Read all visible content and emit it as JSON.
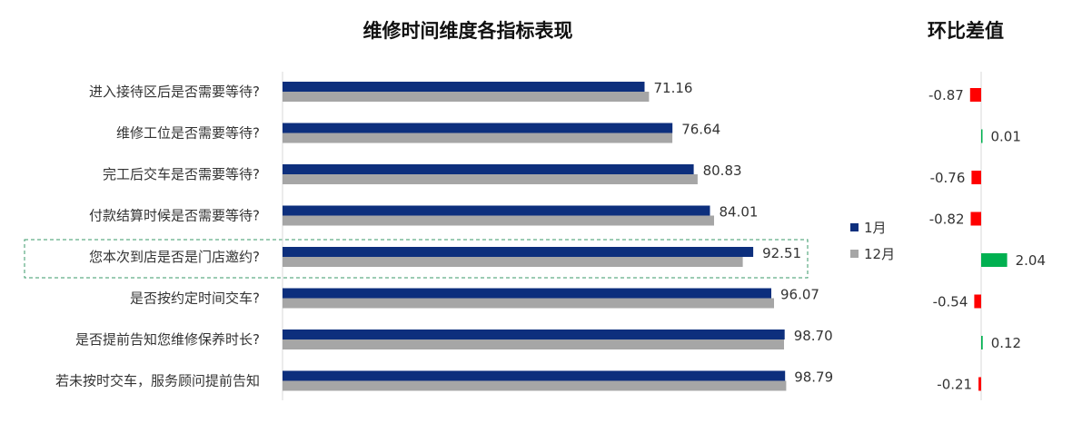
{
  "chart_data": [
    {
      "type": "bar",
      "orientation": "horizontal",
      "title": "维修时间维度各指标表现",
      "categories": [
        "进入接待区后是否需要等待?",
        "维修工位是否需要等待?",
        "完工后交车是否需要等待?",
        "付款结算时候是否需要等待?",
        "您本次到店是否是门店邀约?",
        "是否按约定时间交车?",
        "是否提前告知您维修保养时长?",
        "若未按时交车，服务顾问提前告知"
      ],
      "series": [
        {
          "name": "1月",
          "color": "#0d2f7d",
          "values": [
            71.16,
            76.64,
            80.83,
            84.01,
            92.51,
            96.07,
            98.7,
            98.79
          ]
        },
        {
          "name": "12月",
          "color": "#a6a6a6",
          "values": [
            72.03,
            76.63,
            81.59,
            84.83,
            90.47,
            96.61,
            98.58,
            99.0
          ]
        }
      ],
      "value_labels": [
        "71.16",
        "76.64",
        "80.83",
        "84.01",
        "92.51",
        "96.07",
        "98.70",
        "98.79"
      ],
      "xlim": [
        0,
        120
      ],
      "legend_position": "right",
      "highlighted_category": "您本次到店是否是门店邀约?"
    },
    {
      "type": "bar",
      "orientation": "horizontal",
      "title": "环比差值",
      "values": [
        -0.87,
        0.01,
        -0.76,
        -0.82,
        2.04,
        -0.54,
        0.12,
        -0.21
      ],
      "value_labels": [
        "-0.87",
        "0.01",
        "-0.76",
        "-0.82",
        "2.04",
        "-0.54",
        "0.12",
        "-0.21"
      ],
      "positive_color": "#00b050",
      "negative_color": "#ff0000"
    }
  ]
}
